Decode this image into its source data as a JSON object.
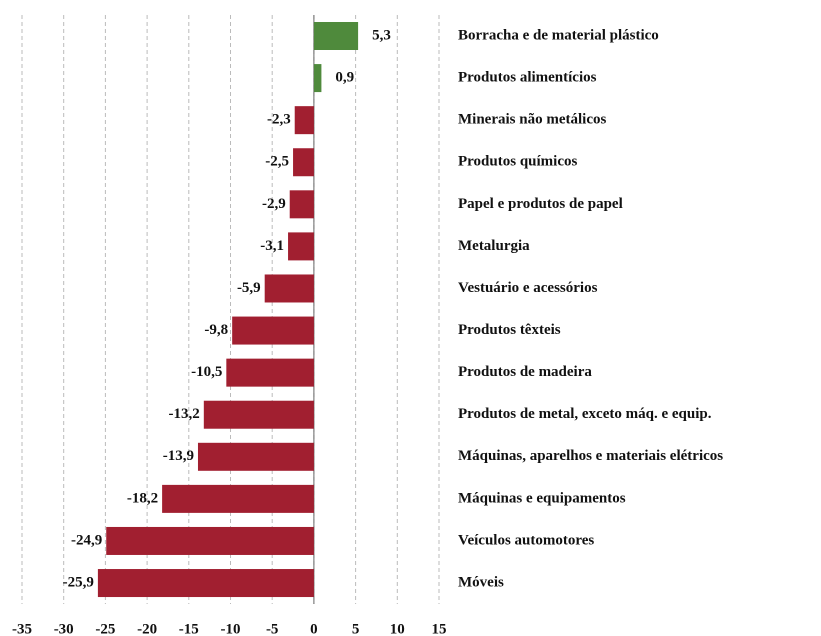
{
  "chart_data": {
    "type": "bar",
    "orientation": "horizontal",
    "categories": [
      "Borracha e de material plástico",
      "Produtos alimentícios",
      "Minerais não metálicos",
      "Produtos químicos",
      "Papel e produtos de papel",
      "Metalurgia",
      "Vestuário e acessórios",
      "Produtos têxteis",
      "Produtos de madeira",
      "Produtos de metal, exceto máq. e equip.",
      "Máquinas, aparelhos e materiais elétricos",
      "Máquinas e equipamentos",
      "Veículos automotores",
      "Móveis"
    ],
    "values": [
      5.3,
      0.9,
      -2.3,
      -2.5,
      -2.9,
      -3.1,
      -5.9,
      -9.8,
      -10.5,
      -13.2,
      -13.9,
      -18.2,
      -24.9,
      -25.9
    ],
    "value_labels": [
      "5,3",
      "0,9",
      "-2,3",
      "-2,5",
      "-2,9",
      "-3,1",
      "-5,9",
      "-9,8",
      "-10,5",
      "-13,2",
      "-13,9",
      "-18,2",
      "-24,9",
      "-25,9"
    ],
    "positive_color": "#4f8a3c",
    "negative_color": "#a11f30",
    "xlim": [
      -35,
      15
    ],
    "xticks": [
      -35,
      -30,
      -25,
      -20,
      -15,
      -10,
      -5,
      0,
      5,
      10,
      15
    ],
    "grid": true
  }
}
